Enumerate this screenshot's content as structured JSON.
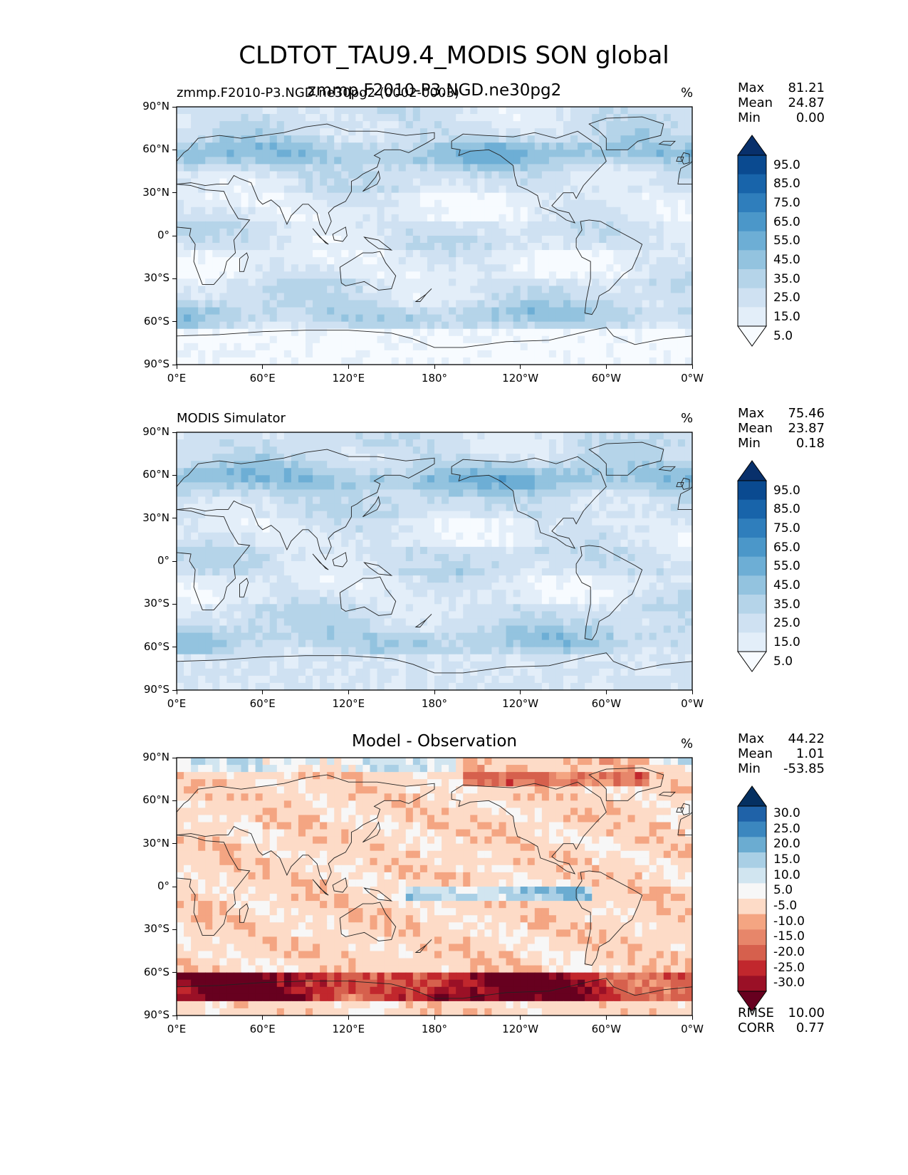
{
  "title": "CLDTOT_TAU9.4_MODIS SON global",
  "panels": [
    {
      "left_title": "zmmp.F2010-P3.NGD.ne30pg2 (0002-0003)",
      "center_title": "zmmp.F2010-P3.NGD.ne30pg2",
      "unit": "%",
      "stats": [
        {
          "label": "Max",
          "value": "81.21"
        },
        {
          "label": "Mean",
          "value": "24.87"
        },
        {
          "label": "Min",
          "value": "0.00"
        }
      ],
      "colorbar": {
        "ticks": [
          "95.0",
          "85.0",
          "75.0",
          "65.0",
          "55.0",
          "45.0",
          "35.0",
          "25.0",
          "15.0",
          "5.0"
        ],
        "colors": [
          "#f7fbff",
          "#e3eef9",
          "#cfe1f2",
          "#b5d4e9",
          "#93c3df",
          "#6daed5",
          "#4b97c9",
          "#2f7ebc",
          "#1864aa",
          "#0a4a90",
          "#08306b"
        ]
      }
    },
    {
      "left_title": "MODIS Simulator",
      "center_title": "",
      "unit": "%",
      "stats": [
        {
          "label": "Max",
          "value": "75.46"
        },
        {
          "label": "Mean",
          "value": "23.87"
        },
        {
          "label": "Min",
          "value": "0.18"
        }
      ],
      "colorbar": {
        "ticks": [
          "95.0",
          "85.0",
          "75.0",
          "65.0",
          "55.0",
          "45.0",
          "35.0",
          "25.0",
          "15.0",
          "5.0"
        ],
        "colors": [
          "#f7fbff",
          "#e3eef9",
          "#cfe1f2",
          "#b5d4e9",
          "#93c3df",
          "#6daed5",
          "#4b97c9",
          "#2f7ebc",
          "#1864aa",
          "#0a4a90",
          "#08306b"
        ]
      }
    },
    {
      "left_title": "",
      "center_title": "Model - Observation",
      "unit": "%",
      "stats": [
        {
          "label": "Max",
          "value": "44.22"
        },
        {
          "label": "Mean",
          "value": "1.01"
        },
        {
          "label": "Min",
          "value": "-53.85"
        }
      ],
      "extra_stats": [
        {
          "label": "RMSE",
          "value": "10.00"
        },
        {
          "label": "CORR",
          "value": "0.77"
        }
      ],
      "colorbar": {
        "ticks": [
          "30.0",
          "25.0",
          "20.0",
          "15.0",
          "10.0",
          "5.0",
          "-5.0",
          "-10.0",
          "-15.0",
          "-20.0",
          "-25.0",
          "-30.0"
        ],
        "colors": [
          "#67001f",
          "#9a1026",
          "#c1272d",
          "#d6604d",
          "#e7866a",
          "#f4a582",
          "#fddbc7",
          "#f7f7f7",
          "#d1e5f0",
          "#a9cfe5",
          "#6bacd1",
          "#3b87bf",
          "#1f62a8",
          "#053061"
        ]
      }
    }
  ],
  "lat_ticks": [
    "90°N",
    "60°N",
    "30°N",
    "0°",
    "30°S",
    "60°S",
    "90°S"
  ],
  "lon_ticks": [
    "0°E",
    "60°E",
    "120°E",
    "180°",
    "120°W",
    "60°W",
    "0°W"
  ],
  "chart_data": [
    {
      "type": "heatmap",
      "title": "zmmp.F2010-P3.NGD.ne30pg2",
      "subtitle": "zmmp.F2010-P3.NGD.ne30pg2 (0002-0003)",
      "unit": "%",
      "x_ticks": [
        "0°E",
        "60°E",
        "120°E",
        "180°",
        "120°W",
        "60°W",
        "0°W"
      ],
      "y_ticks": [
        "90°N",
        "60°N",
        "30°N",
        "0°",
        "30°S",
        "60°S",
        "90°S"
      ],
      "levels": [
        5,
        15,
        25,
        35,
        45,
        55,
        65,
        75,
        85,
        95
      ],
      "max": 81.21,
      "mean": 24.87,
      "min": 0.0
    },
    {
      "type": "heatmap",
      "title": "MODIS Simulator",
      "unit": "%",
      "x_ticks": [
        "0°E",
        "60°E",
        "120°E",
        "180°",
        "120°W",
        "60°W",
        "0°W"
      ],
      "y_ticks": [
        "90°N",
        "60°N",
        "30°N",
        "0°",
        "30°S",
        "60°S",
        "90°S"
      ],
      "levels": [
        5,
        15,
        25,
        35,
        45,
        55,
        65,
        75,
        85,
        95
      ],
      "max": 75.46,
      "mean": 23.87,
      "min": 0.18
    },
    {
      "type": "heatmap",
      "title": "Model - Observation",
      "unit": "%",
      "x_ticks": [
        "0°E",
        "60°E",
        "120°E",
        "180°",
        "120°W",
        "60°W",
        "0°W"
      ],
      "y_ticks": [
        "90°N",
        "60°N",
        "30°N",
        "0°",
        "30°S",
        "60°S",
        "90°S"
      ],
      "levels": [
        -30,
        -25,
        -20,
        -15,
        -10,
        -5,
        5,
        10,
        15,
        20,
        25,
        30
      ],
      "max": 44.22,
      "mean": 1.01,
      "min": -53.85,
      "rmse": 10.0,
      "corr": 0.77
    }
  ]
}
